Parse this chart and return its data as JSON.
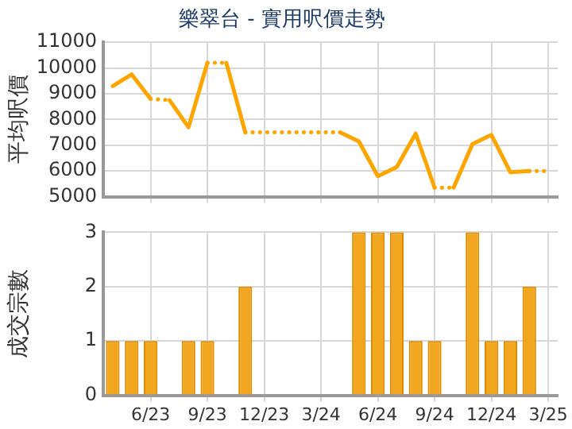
{
  "chart_data": [
    {
      "type": "line",
      "title": "樂翠台 - 實用呎價走勢",
      "ylabel": "平均呎價",
      "categories": [
        null,
        null,
        null,
        null,
        null,
        null,
        null,
        null,
        null,
        null,
        null,
        null,
        null,
        null,
        null,
        null,
        null,
        null,
        null,
        null,
        null,
        null,
        null,
        null
      ],
      "series": [
        {
          "color": "#ffa500",
          "values": [
            9300,
            9750,
            8800,
            8750,
            7700,
            10200,
            10200,
            7500,
            7500,
            7500,
            7500,
            7500,
            7500,
            7150,
            5800,
            6150,
            7450,
            5350,
            5350,
            7050,
            7400,
            5950,
            6000,
            6000
          ]
        }
      ],
      "ylim": [
        5000,
        11000
      ],
      "yticks": [
        5000,
        6000,
        7000,
        8000,
        9000,
        10000,
        11000
      ],
      "grid": true,
      "tick_labels": "y",
      "marker": "none",
      "line_style": "solid"
    },
    {
      "type": "bar",
      "ylabel": "成交宗數",
      "categories": [
        null,
        null,
        "6/23",
        null,
        null,
        "9/23",
        null,
        null,
        "12/23",
        null,
        null,
        "3/24",
        null,
        null,
        "6/24",
        null,
        null,
        "9/24",
        null,
        null,
        "12/24",
        null,
        null,
        "3/25"
      ],
      "series": [
        {
          "color": "#f2a51f",
          "values": [
            1,
            1,
            1,
            0,
            1,
            1,
            0,
            2,
            0,
            0,
            0,
            0,
            0,
            3,
            3,
            3,
            1,
            1,
            0,
            3,
            1,
            1,
            2,
            0
          ]
        }
      ],
      "ylim": [
        0,
        3
      ],
      "yticks": [
        0,
        1,
        2,
        3
      ],
      "grid": true
    }
  ]
}
